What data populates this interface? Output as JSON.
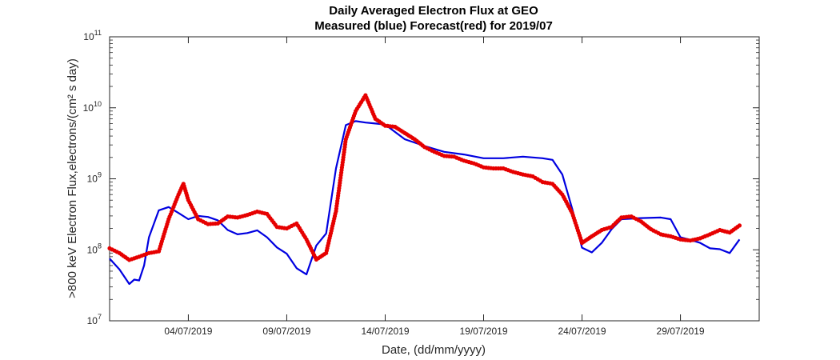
{
  "chart_data": {
    "type": "line",
    "title_lines": [
      "Daily Averaged Electron Flux at GEO",
      "Measured (blue) Forecast(red) for 2019/07"
    ],
    "xlabel": "Date, (dd/mm/yyyy)",
    "ylabel": ">800 keV Electron Flux,electrons/(cm² s day)",
    "y_scale": "log",
    "ylim": [
      10000000,
      100000000000
    ],
    "xlim": [
      "2019-06-30",
      "2019-08-02"
    ],
    "x_ticks": [
      {
        "date": "2019-07-04",
        "label": "04/07/2019"
      },
      {
        "date": "2019-07-09",
        "label": "09/07/2019"
      },
      {
        "date": "2019-07-14",
        "label": "14/07/2019"
      },
      {
        "date": "2019-07-19",
        "label": "19/07/2019"
      },
      {
        "date": "2019-07-24",
        "label": "24/07/2019"
      },
      {
        "date": "2019-07-29",
        "label": "29/07/2019"
      }
    ],
    "y_ticks": [
      {
        "value": 10000000,
        "base": "10",
        "exp": "7"
      },
      {
        "value": 100000000,
        "base": "10",
        "exp": "8"
      },
      {
        "value": 1000000000,
        "base": "10",
        "exp": "9"
      },
      {
        "value": 10000000000,
        "base": "10",
        "exp": "10"
      },
      {
        "value": 100000000000,
        "base": "10",
        "exp": "11"
      }
    ],
    "grid": false,
    "colors": {
      "measured": "#0000e0",
      "forecast": "#e60000",
      "axis": "#262626",
      "background": "#ffffff"
    },
    "series": [
      {
        "style": "line",
        "x": [
          "2019-06-30 00:00",
          "2019-06-30 12:00",
          "2019-07-01 00:00",
          "2019-07-01 06:00",
          "2019-07-01 12:00",
          "2019-07-01 18:00",
          "2019-07-02 00:00",
          "2019-07-02 12:00",
          "2019-07-03 00:00",
          "2019-07-03 12:00",
          "2019-07-04 00:00",
          "2019-07-04 12:00",
          "2019-07-05 00:00",
          "2019-07-05 12:00",
          "2019-07-06 00:00",
          "2019-07-06 12:00",
          "2019-07-07 00:00",
          "2019-07-07 12:00",
          "2019-07-08 00:00",
          "2019-07-08 12:00",
          "2019-07-09 00:00",
          "2019-07-09 12:00",
          "2019-07-10 00:00",
          "2019-07-10 12:00",
          "2019-07-11 00:00",
          "2019-07-11 12:00",
          "2019-07-12 00:00",
          "2019-07-12 12:00",
          "2019-07-13 00:00",
          "2019-07-13 12:00",
          "2019-07-14 00:00",
          "2019-07-15 00:00",
          "2019-07-16 00:00",
          "2019-07-17 00:00",
          "2019-07-18 00:00",
          "2019-07-19 00:00",
          "2019-07-20 00:00",
          "2019-07-21 00:00",
          "2019-07-22 00:00",
          "2019-07-22 12:00",
          "2019-07-23 00:00",
          "2019-07-23 12:00",
          "2019-07-24 00:00",
          "2019-07-24 12:00",
          "2019-07-25 00:00",
          "2019-07-25 12:00",
          "2019-07-26 00:00",
          "2019-07-27 00:00",
          "2019-07-28 00:00",
          "2019-07-28 12:00",
          "2019-07-29 00:00",
          "2019-07-29 12:00",
          "2019-07-30 00:00",
          "2019-07-30 12:00",
          "2019-07-31 00:00",
          "2019-07-31 12:00",
          "2019-08-01 00:00"
        ],
        "values": [
          75000000,
          53000000,
          33000000,
          38000000,
          37000000,
          60000000,
          150000000,
          360000000,
          400000000,
          330000000,
          270000000,
          300000000,
          290000000,
          260000000,
          190000000,
          165000000,
          172000000,
          188000000,
          150000000,
          108000000,
          88000000,
          55000000,
          45000000,
          115000000,
          170000000,
          1400000000,
          5700000000,
          6500000000,
          6200000000,
          6000000000,
          5800000000,
          3600000000,
          2900000000,
          2400000000,
          2200000000,
          1950000000,
          1950000000,
          2050000000,
          1950000000,
          1850000000,
          1150000000,
          380000000,
          107000000,
          92000000,
          125000000,
          195000000,
          270000000,
          280000000,
          285000000,
          270000000,
          150000000,
          138000000,
          125000000,
          105000000,
          102000000,
          90000000,
          140000000
        ]
      },
      {
        "style": "dots",
        "x": [
          "2019-06-30 00:00",
          "2019-06-30 12:00",
          "2019-07-01 00:00",
          "2019-07-01 12:00",
          "2019-07-02 00:00",
          "2019-07-02 12:00",
          "2019-07-03 00:00",
          "2019-07-03 12:00",
          "2019-07-03 18:00",
          "2019-07-04 00:00",
          "2019-07-04 12:00",
          "2019-07-05 00:00",
          "2019-07-05 12:00",
          "2019-07-06 00:00",
          "2019-07-06 12:00",
          "2019-07-07 00:00",
          "2019-07-07 12:00",
          "2019-07-08 00:00",
          "2019-07-08 12:00",
          "2019-07-09 00:00",
          "2019-07-09 12:00",
          "2019-07-10 00:00",
          "2019-07-10 12:00",
          "2019-07-11 00:00",
          "2019-07-11 12:00",
          "2019-07-12 00:00",
          "2019-07-12 12:00",
          "2019-07-13 00:00",
          "2019-07-13 12:00",
          "2019-07-14 00:00",
          "2019-07-14 12:00",
          "2019-07-15 00:00",
          "2019-07-15 12:00",
          "2019-07-16 00:00",
          "2019-07-16 12:00",
          "2019-07-17 00:00",
          "2019-07-17 12:00",
          "2019-07-18 00:00",
          "2019-07-18 12:00",
          "2019-07-19 00:00",
          "2019-07-19 12:00",
          "2019-07-20 00:00",
          "2019-07-20 12:00",
          "2019-07-21 00:00",
          "2019-07-21 12:00",
          "2019-07-22 00:00",
          "2019-07-22 12:00",
          "2019-07-23 00:00",
          "2019-07-23 12:00",
          "2019-07-24 00:00",
          "2019-07-24 12:00",
          "2019-07-25 00:00",
          "2019-07-25 12:00",
          "2019-07-26 00:00",
          "2019-07-26 12:00",
          "2019-07-27 00:00",
          "2019-07-27 12:00",
          "2019-07-28 00:00",
          "2019-07-28 12:00",
          "2019-07-29 00:00",
          "2019-07-29 12:00",
          "2019-07-30 00:00",
          "2019-07-30 12:00",
          "2019-07-31 00:00",
          "2019-07-31 12:00",
          "2019-08-01 00:00"
        ],
        "values": [
          105000000,
          90000000,
          72000000,
          80000000,
          90000000,
          95000000,
          270000000,
          600000000,
          850000000,
          500000000,
          270000000,
          230000000,
          235000000,
          295000000,
          285000000,
          310000000,
          345000000,
          320000000,
          210000000,
          200000000,
          235000000,
          140000000,
          73000000,
          90000000,
          350000000,
          3600000000,
          9000000000,
          15000000000,
          7000000000,
          5600000000,
          5400000000,
          4400000000,
          3600000000,
          2800000000,
          2400000000,
          2100000000,
          2050000000,
          1800000000,
          1650000000,
          1450000000,
          1400000000,
          1400000000,
          1250000000,
          1150000000,
          1080000000,
          900000000,
          850000000,
          600000000,
          330000000,
          125000000,
          155000000,
          190000000,
          210000000,
          285000000,
          295000000,
          250000000,
          195000000,
          165000000,
          155000000,
          140000000,
          135000000,
          145000000,
          165000000,
          190000000,
          175000000,
          220000000
        ]
      }
    ]
  }
}
